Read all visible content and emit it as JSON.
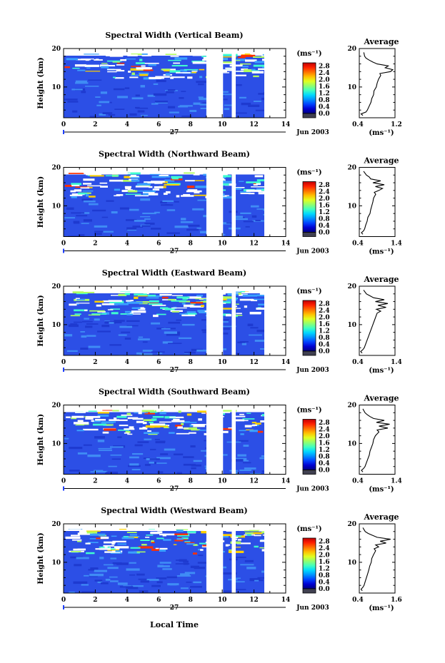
{
  "figure": {
    "x_label": "Local Time",
    "month_label": "Jun 2003",
    "day_label": "27",
    "y_label": "Height (km)",
    "colorbar_unit": "(ms⁻¹)",
    "average_title": "Average",
    "average_unit": "(ms⁻¹)"
  },
  "chart_data": [
    {
      "type": "heatmap",
      "title": "Spectral Width (Vertical Beam)",
      "xlabel": "Local Time",
      "ylabel": "Height (km)",
      "xlim": [
        0,
        14
      ],
      "x_ticks": [
        0,
        2,
        4,
        6,
        8,
        10,
        12,
        14
      ],
      "ylim": [
        2,
        20
      ],
      "y_ticks": [
        10,
        20
      ],
      "data_gaps_hours": [
        [
          9.0,
          10.05
        ],
        [
          10.6,
          10.85
        ],
        [
          12.65,
          14
        ]
      ],
      "colorbar": {
        "ticks": [
          "0.0",
          "0.4",
          "0.8",
          "1.2",
          "1.6",
          "2.0",
          "2.4",
          "2.8"
        ],
        "range": [
          0,
          3.0
        ]
      },
      "average_profile": {
        "xlim": [
          0.4,
          1.2
        ],
        "x_ticks": [
          "0.4",
          "1.2"
        ],
        "y_ticks": [
          10,
          20
        ],
        "height_km": [
          2.6,
          3.0,
          3.5,
          4.0,
          5.0,
          6.0,
          7.0,
          8.0,
          9.0,
          10.0,
          11.0,
          12.0,
          13.0,
          13.5,
          14.0,
          14.5,
          15.0,
          15.5,
          16.0,
          16.5,
          17.0,
          17.5,
          18.0,
          19.0
        ],
        "width_ms": [
          0.48,
          0.44,
          0.55,
          0.58,
          0.62,
          0.66,
          0.68,
          0.72,
          0.73,
          0.78,
          0.8,
          0.83,
          0.88,
          0.86,
          1.1,
          1.15,
          0.98,
          1.05,
          0.8,
          0.7,
          0.62,
          0.55,
          0.52,
          0.5
        ]
      }
    },
    {
      "type": "heatmap",
      "title": "Spectral Width (Northward Beam)",
      "xlabel": "Local Time",
      "ylabel": "Height (km)",
      "xlim": [
        0,
        14
      ],
      "x_ticks": [
        0,
        2,
        4,
        6,
        8,
        10,
        12,
        14
      ],
      "ylim": [
        2,
        20
      ],
      "y_ticks": [
        10,
        20
      ],
      "data_gaps_hours": [
        [
          9.0,
          10.05
        ],
        [
          10.6,
          10.85
        ],
        [
          12.65,
          14
        ]
      ],
      "colorbar": {
        "ticks": [
          "0.0",
          "0.4",
          "0.8",
          "1.2",
          "1.6",
          "2.0",
          "2.4",
          "2.8"
        ],
        "range": [
          0,
          3.0
        ]
      },
      "average_profile": {
        "xlim": [
          0.4,
          1.4
        ],
        "x_ticks": [
          "0.4",
          "1.4"
        ],
        "y_ticks": [
          10,
          20
        ],
        "height_km": [
          2.6,
          3.0,
          3.5,
          4.0,
          5.0,
          6.0,
          7.0,
          8.0,
          9.0,
          10.0,
          11.0,
          12.0,
          13.0,
          13.5,
          14.0,
          14.5,
          15.0,
          15.5,
          16.0,
          16.5,
          17.0,
          17.5,
          18.0,
          19.0
        ],
        "width_ms": [
          0.5,
          0.46,
          0.52,
          0.55,
          0.58,
          0.62,
          0.64,
          0.7,
          0.72,
          0.75,
          0.78,
          0.8,
          0.86,
          0.82,
          0.95,
          1.05,
          0.85,
          1.1,
          0.78,
          1.0,
          0.72,
          0.68,
          0.6,
          0.52
        ]
      }
    },
    {
      "type": "heatmap",
      "title": "Spectral Width (Eastward Beam)",
      "xlabel": "Local Time",
      "ylabel": "Height (km)",
      "xlim": [
        0,
        14
      ],
      "x_ticks": [
        0,
        2,
        4,
        6,
        8,
        10,
        12,
        14
      ],
      "ylim": [
        2,
        20
      ],
      "y_ticks": [
        10,
        20
      ],
      "data_gaps_hours": [
        [
          9.0,
          10.05
        ],
        [
          10.6,
          10.85
        ],
        [
          12.65,
          14
        ]
      ],
      "colorbar": {
        "ticks": [
          "0.0",
          "0.4",
          "0.8",
          "1.2",
          "1.6",
          "2.0",
          "2.4",
          "2.8"
        ],
        "range": [
          0,
          3.0
        ]
      },
      "average_profile": {
        "xlim": [
          0.4,
          1.4
        ],
        "x_ticks": [
          "0.4",
          "1.4"
        ],
        "y_ticks": [
          10,
          20
        ],
        "height_km": [
          2.6,
          3.0,
          3.5,
          4.0,
          5.0,
          6.0,
          7.0,
          8.0,
          9.0,
          10.0,
          11.0,
          12.0,
          13.0,
          13.5,
          14.0,
          14.5,
          15.0,
          15.5,
          16.0,
          16.5,
          17.0,
          17.5,
          18.0,
          19.0
        ],
        "width_ms": [
          0.48,
          0.44,
          0.5,
          0.54,
          0.58,
          0.62,
          0.66,
          0.7,
          0.74,
          0.78,
          0.82,
          0.86,
          0.9,
          1.0,
          0.88,
          1.15,
          0.92,
          1.2,
          0.85,
          1.1,
          0.8,
          0.7,
          0.6,
          0.52
        ]
      }
    },
    {
      "type": "heatmap",
      "title": "Spectral Width (Southward Beam)",
      "xlabel": "Local Time",
      "ylabel": "Height (km)",
      "xlim": [
        0,
        14
      ],
      "x_ticks": [
        0,
        2,
        4,
        6,
        8,
        10,
        12,
        14
      ],
      "ylim": [
        2,
        20
      ],
      "y_ticks": [
        10,
        20
      ],
      "data_gaps_hours": [
        [
          9.0,
          10.05
        ],
        [
          10.6,
          10.85
        ],
        [
          12.65,
          14
        ]
      ],
      "colorbar": {
        "ticks": [
          "0.0",
          "0.4",
          "0.8",
          "1.2",
          "1.6",
          "2.0",
          "2.4",
          "2.8"
        ],
        "range": [
          0,
          3.0
        ]
      },
      "average_profile": {
        "xlim": [
          0.4,
          1.4
        ],
        "x_ticks": [
          "0.4",
          "1.4"
        ],
        "y_ticks": [
          10,
          20
        ],
        "height_km": [
          2.6,
          3.0,
          3.5,
          4.0,
          5.0,
          6.0,
          7.0,
          8.0,
          9.0,
          10.0,
          11.0,
          12.0,
          13.0,
          13.5,
          14.0,
          14.5,
          15.0,
          15.5,
          16.0,
          16.5,
          17.0,
          17.5,
          18.0,
          19.0
        ],
        "width_ms": [
          0.5,
          0.46,
          0.52,
          0.56,
          0.6,
          0.64,
          0.68,
          0.7,
          0.74,
          0.78,
          0.8,
          0.85,
          0.95,
          0.9,
          1.2,
          0.95,
          1.25,
          0.88,
          1.1,
          0.8,
          0.7,
          0.62,
          0.56,
          0.5
        ]
      }
    },
    {
      "type": "heatmap",
      "title": "Spectral Width (Westward Beam)",
      "xlabel": "Local Time",
      "ylabel": "Height (km)",
      "xlim": [
        0,
        14
      ],
      "x_ticks": [
        0,
        2,
        4,
        6,
        8,
        10,
        12,
        14
      ],
      "ylim": [
        2,
        20
      ],
      "y_ticks": [
        10,
        20
      ],
      "data_gaps_hours": [
        [
          9.0,
          10.05
        ],
        [
          10.6,
          10.85
        ],
        [
          12.65,
          14
        ]
      ],
      "colorbar": {
        "ticks": [
          "0.0",
          "0.4",
          "0.8",
          "1.2",
          "1.6",
          "2.0",
          "2.4",
          "2.8"
        ],
        "range": [
          0,
          3.0
        ]
      },
      "average_profile": {
        "xlim": [
          0.4,
          1.6
        ],
        "x_ticks": [
          "0.4",
          "1.6"
        ],
        "y_ticks": [
          10,
          20
        ],
        "height_km": [
          2.6,
          3.0,
          3.5,
          4.0,
          5.0,
          6.0,
          7.0,
          8.0,
          9.0,
          10.0,
          11.0,
          12.0,
          13.0,
          13.5,
          14.0,
          14.5,
          15.0,
          15.5,
          16.0,
          16.5,
          17.0,
          17.5,
          18.0,
          19.0
        ],
        "width_ms": [
          0.5,
          0.46,
          0.52,
          0.56,
          0.6,
          0.64,
          0.68,
          0.72,
          0.75,
          0.8,
          0.82,
          0.88,
          0.95,
          0.9,
          1.05,
          0.95,
          1.3,
          1.1,
          1.45,
          1.0,
          0.85,
          0.7,
          0.6,
          0.52
        ]
      }
    }
  ]
}
